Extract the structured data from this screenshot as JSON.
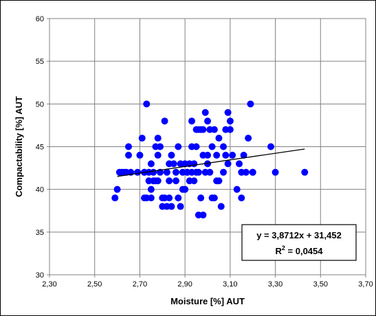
{
  "chart_data": {
    "type": "scatter",
    "xlabel": "Moisture [%] AUT",
    "ylabel": "Compactability [%] AUT",
    "xlim": [
      2.3,
      3.7
    ],
    "ylim": [
      30,
      60
    ],
    "x_ticks": [
      "2,30",
      "2,50",
      "2,70",
      "2,90",
      "3,10",
      "3,30",
      "3,50",
      "3,70"
    ],
    "y_ticks": [
      "30",
      "35",
      "40",
      "45",
      "50",
      "55",
      "60"
    ],
    "grid": true,
    "marker_color": "#0000ff",
    "series": [
      {
        "x": [
          2.59,
          2.6,
          2.61,
          2.62,
          2.63,
          2.64,
          2.65,
          2.65,
          2.66,
          2.69,
          2.7,
          2.71,
          2.72,
          2.72,
          2.72,
          2.73,
          2.73,
          2.74,
          2.74,
          2.75,
          2.75,
          2.75,
          2.76,
          2.76,
          2.77,
          2.77,
          2.78,
          2.78,
          2.78,
          2.79,
          2.79,
          2.8,
          2.8,
          2.81,
          2.81,
          2.82,
          2.82,
          2.83,
          2.83,
          2.83,
          2.84,
          2.84,
          2.85,
          2.86,
          2.86,
          2.87,
          2.87,
          2.88,
          2.88,
          2.89,
          2.89,
          2.9,
          2.9,
          2.91,
          2.91,
          2.92,
          2.92,
          2.93,
          2.93,
          2.93,
          2.94,
          2.94,
          2.95,
          2.95,
          2.95,
          2.96,
          2.96,
          2.96,
          2.97,
          2.97,
          2.98,
          2.98,
          2.98,
          2.99,
          2.99,
          3.0,
          3.0,
          3.0,
          3.01,
          3.01,
          3.02,
          3.02,
          3.03,
          3.03,
          3.04,
          3.04,
          3.05,
          3.05,
          3.06,
          3.07,
          3.07,
          3.08,
          3.08,
          3.09,
          3.09,
          3.1,
          3.1,
          3.11,
          3.13,
          3.14,
          3.15,
          3.15,
          3.16,
          3.17,
          3.18,
          3.19,
          3.2,
          3.2,
          3.28,
          3.3,
          3.43
        ],
        "y": [
          39,
          40,
          42,
          42,
          42,
          42,
          44,
          45,
          42,
          42,
          44,
          46,
          39,
          42,
          42,
          50,
          39,
          41,
          42,
          40,
          39,
          43,
          41,
          42,
          45,
          41,
          44,
          46,
          41,
          42,
          45,
          39,
          38,
          39,
          48,
          38,
          42,
          39,
          43,
          41,
          44,
          38,
          43,
          41,
          42,
          45,
          39,
          38,
          43,
          40,
          42,
          40,
          43,
          42,
          42,
          43,
          41,
          48,
          45,
          42,
          41,
          43,
          45,
          47,
          42,
          37,
          47,
          42,
          47,
          39,
          37,
          44,
          47,
          49,
          42,
          48,
          44,
          43,
          47,
          42,
          45,
          39,
          47,
          39,
          41,
          44,
          41,
          46,
          38,
          42,
          45,
          44,
          47,
          43,
          49,
          47,
          48,
          44,
          40,
          43,
          42,
          39,
          44,
          42,
          46,
          50,
          42,
          42,
          45,
          42,
          42
        ]
      }
    ],
    "trendline": {
      "slope": 3.8712,
      "intercept": 31.452,
      "x_range": [
        2.6,
        3.43
      ]
    },
    "equation_text": "y = 3,8712x + 31,452",
    "r2_prefix": "R",
    "r2_sup": "2",
    "r2_suffix": " = 0,0454"
  }
}
